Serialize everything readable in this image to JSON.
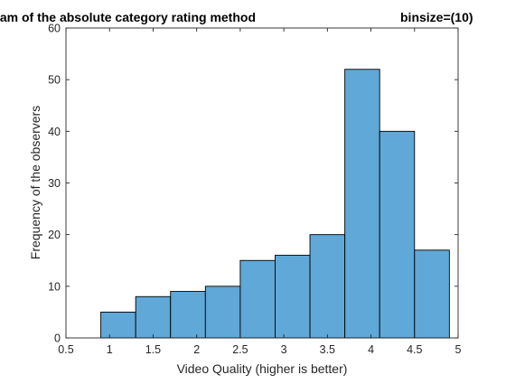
{
  "chart_data": {
    "type": "bar",
    "title": "Histogram of the absolute category rating method",
    "title_suffix": "binsize=(10)",
    "xlabel": "Video Quality (higher is better)",
    "ylabel": "Frequency of the observers",
    "xlim": [
      0.5,
      5
    ],
    "ylim": [
      0,
      60
    ],
    "xticks": [
      0.5,
      1,
      1.5,
      2,
      2.5,
      3,
      3.5,
      4,
      4.5,
      5
    ],
    "xtick_labels": [
      "0.5",
      "1",
      "1.5",
      "2",
      "2.5",
      "3",
      "3.5",
      "4",
      "4.5",
      "5"
    ],
    "yticks": [
      0,
      10,
      20,
      30,
      40,
      50,
      60
    ],
    "ytick_labels": [
      "0",
      "10",
      "20",
      "30",
      "40",
      "50",
      "60"
    ],
    "bins": [
      {
        "start": 0.9,
        "end": 1.3,
        "value": 5
      },
      {
        "start": 1.3,
        "end": 1.7,
        "value": 8
      },
      {
        "start": 1.7,
        "end": 2.1,
        "value": 9
      },
      {
        "start": 2.1,
        "end": 2.5,
        "value": 10
      },
      {
        "start": 2.5,
        "end": 2.9,
        "value": 15
      },
      {
        "start": 2.9,
        "end": 3.3,
        "value": 16
      },
      {
        "start": 3.3,
        "end": 3.7,
        "value": 20
      },
      {
        "start": 3.7,
        "end": 4.1,
        "value": 52
      },
      {
        "start": 4.1,
        "end": 4.5,
        "value": 40
      },
      {
        "start": 4.5,
        "end": 4.9,
        "value": 17
      }
    ],
    "bar_color": "#5fa8d8",
    "bar_edge_color": "#000000",
    "grid": false,
    "box": true
  }
}
